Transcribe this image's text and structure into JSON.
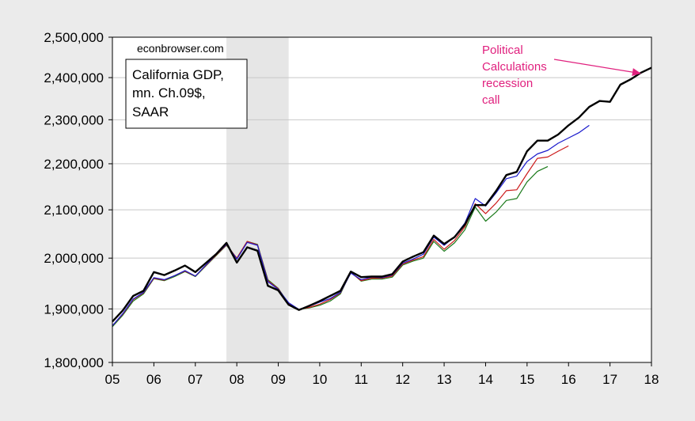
{
  "chart_data": {
    "type": "line",
    "watermark": "econbrowser.com",
    "legend_box_lines": [
      "California GDP,",
      "mn. Ch.09$,",
      "SAAR"
    ],
    "annotation": {
      "lines": [
        "Political",
        "Calculations",
        "recession",
        "call"
      ],
      "color": "#e0207e",
      "arrow_to": [
        2017.75,
        2410000
      ]
    },
    "recession_shade": {
      "start": 2007.75,
      "end": 2009.25,
      "color": "#e6e6e6"
    },
    "xlim": [
      2005,
      2018
    ],
    "ylim": [
      1800000,
      2500000
    ],
    "y_scale": "log",
    "grid": "horizontal",
    "x_ticks": [
      {
        "value": 2005,
        "label": "05"
      },
      {
        "value": 2006,
        "label": "06"
      },
      {
        "value": 2007,
        "label": "07"
      },
      {
        "value": 2008,
        "label": "08"
      },
      {
        "value": 2009,
        "label": "09"
      },
      {
        "value": 2010,
        "label": "10"
      },
      {
        "value": 2011,
        "label": "11"
      },
      {
        "value": 2012,
        "label": "12"
      },
      {
        "value": 2013,
        "label": "13"
      },
      {
        "value": 2014,
        "label": "14"
      },
      {
        "value": 2015,
        "label": "15"
      },
      {
        "value": 2016,
        "label": "16"
      },
      {
        "value": 2017,
        "label": "17"
      },
      {
        "value": 2018,
        "label": "18"
      }
    ],
    "y_ticks": [
      {
        "value": 1800000,
        "label": "1,800,000"
      },
      {
        "value": 1900000,
        "label": "1,900,000"
      },
      {
        "value": 2000000,
        "label": "2,000,000"
      },
      {
        "value": 2100000,
        "label": "2,100,000"
      },
      {
        "value": 2200000,
        "label": "2,200,000"
      },
      {
        "value": 2300000,
        "label": "2,300,000"
      },
      {
        "value": 2400000,
        "label": "2,400,000"
      },
      {
        "value": 2500000,
        "label": "2,500,000"
      }
    ],
    "x": [
      2005.0,
      2005.25,
      2005.5,
      2005.75,
      2006.0,
      2006.25,
      2006.5,
      2006.75,
      2007.0,
      2007.25,
      2007.5,
      2007.75,
      2008.0,
      2008.25,
      2008.5,
      2008.75,
      2009.0,
      2009.25,
      2009.5,
      2009.75,
      2010.0,
      2010.25,
      2010.5,
      2010.75,
      2011.0,
      2011.25,
      2011.5,
      2011.75,
      2012.0,
      2012.25,
      2012.5,
      2012.75,
      2013.0,
      2013.25,
      2013.5,
      2013.75,
      2014.0,
      2014.25,
      2014.5,
      2014.75,
      2015.0,
      2015.25,
      2015.5,
      2015.75,
      2016.0,
      2016.25,
      2016.5,
      2016.75,
      2017.0,
      2017.25,
      2017.5,
      2017.75,
      2018.0
    ],
    "series": [
      {
        "color": "#000000",
        "width": 2.4,
        "values": [
          1876000,
          1897000,
          1925000,
          1935000,
          1972000,
          1966000,
          1975000,
          1985000,
          1972000,
          1990000,
          2008000,
          2031000,
          1991000,
          2022000,
          2015000,
          1945000,
          1936000,
          1908000,
          1898000,
          1906000,
          1915000,
          1925000,
          1935000,
          1973000,
          1962000,
          1963000,
          1963000,
          1968000,
          1993000,
          2003000,
          2012000,
          2046000,
          2029000,
          2043000,
          2069000,
          2110000,
          2110000,
          2140000,
          2175000,
          2182000,
          2228000,
          2252000,
          2252000,
          2266000,
          2287000,
          2305000,
          2330000,
          2344000,
          2342000,
          2383000,
          2396000,
          2412000,
          2424000
        ]
      },
      {
        "color": "#1a1acc",
        "width": 1.2,
        "values": [
          1868000,
          1891000,
          1919000,
          1932000,
          1961000,
          1957000,
          1965000,
          1975000,
          1964000,
          1986000,
          2007000,
          2028000,
          1998000,
          2032000,
          2026000,
          1953000,
          1938000,
          1912000,
          1899000,
          1905000,
          1913000,
          1920000,
          1932000,
          1970000,
          1957000,
          1962000,
          1961000,
          1966000,
          1990000,
          1998000,
          2008000,
          2043000,
          2026000,
          2044000,
          2072000,
          2124000,
          2108000,
          2136000,
          2167000,
          2173000,
          2205000,
          2222000,
          2230000,
          2246000,
          2258000,
          2270000,
          2287000,
          null,
          null,
          null,
          null,
          null,
          null
        ]
      },
      {
        "color": "#cc1a1a",
        "width": 1.2,
        "values": [
          1868000,
          1890000,
          1918000,
          1931000,
          1960000,
          1956000,
          1965000,
          1974000,
          1964000,
          1985000,
          2006000,
          2027000,
          2000000,
          2034000,
          2027000,
          1955000,
          1939000,
          1910000,
          1899000,
          1903000,
          1909000,
          1918000,
          1931000,
          1971000,
          1955000,
          1960000,
          1960000,
          1964000,
          1988000,
          1996000,
          2003000,
          2038000,
          2018000,
          2036000,
          2064000,
          2113000,
          2092000,
          2114000,
          2141000,
          2143000,
          2178000,
          2212000,
          2215000,
          2228000,
          2240000,
          null,
          null,
          null,
          null,
          null,
          null,
          null,
          null
        ]
      },
      {
        "color": "#1a7a1a",
        "width": 1.2,
        "values": [
          1866000,
          1888000,
          1915000,
          1929000,
          1959000,
          1955000,
          1963000,
          1973000,
          1963000,
          1984000,
          2005000,
          2026000,
          2000000,
          2034000,
          2028000,
          1957000,
          1940000,
          1910000,
          1899000,
          1902000,
          1907000,
          1915000,
          1929000,
          1972000,
          1954000,
          1958000,
          1958000,
          1962000,
          1986000,
          1994000,
          2000000,
          2034000,
          2014000,
          2031000,
          2058000,
          2106000,
          2076000,
          2095000,
          2120000,
          2124000,
          2160000,
          2183000,
          2194000,
          null,
          null,
          null,
          null,
          null,
          null,
          null,
          null,
          null,
          null
        ]
      }
    ]
  }
}
